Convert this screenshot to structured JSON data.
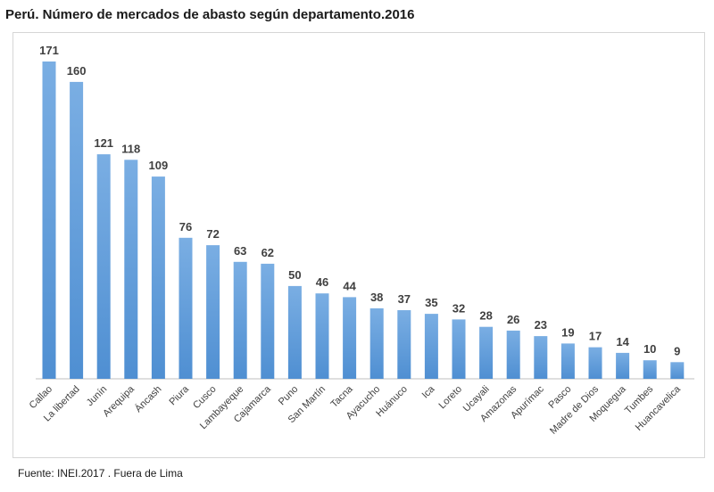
{
  "title": "Perú. Número de mercados de abasto según departamento.2016",
  "source": "Fuente: INEI.2017 . Fuera de Lima",
  "colors": {
    "bar_top": "#7aaee3",
    "bar_bottom": "#4f8fd2",
    "axis": "#bfbfbf"
  },
  "chart_data": {
    "type": "bar",
    "title": "Perú. Número de mercados de abasto según departamento.2016",
    "xlabel": "",
    "ylabel": "",
    "ylim": [
      0,
      171
    ],
    "grid": false,
    "categories": [
      "Callao",
      "La libertad",
      "Junín",
      "Arequipa",
      "Áncash",
      "Piura",
      "Cusco",
      "Lambayeque",
      "Cajamarca",
      "Puno",
      "San Martín",
      "Tacna",
      "Ayacucho",
      "Huánuco",
      "Ica",
      "Loreto",
      "Ucayali",
      "Amazonas",
      "Apurímac",
      "Pasco",
      "Madre de Dios",
      "Moquegua",
      "Tumbes",
      "Huancavelica"
    ],
    "values": [
      171,
      160,
      121,
      118,
      109,
      76,
      72,
      63,
      62,
      50,
      46,
      44,
      38,
      37,
      35,
      32,
      28,
      26,
      23,
      19,
      17,
      14,
      10,
      9
    ]
  }
}
